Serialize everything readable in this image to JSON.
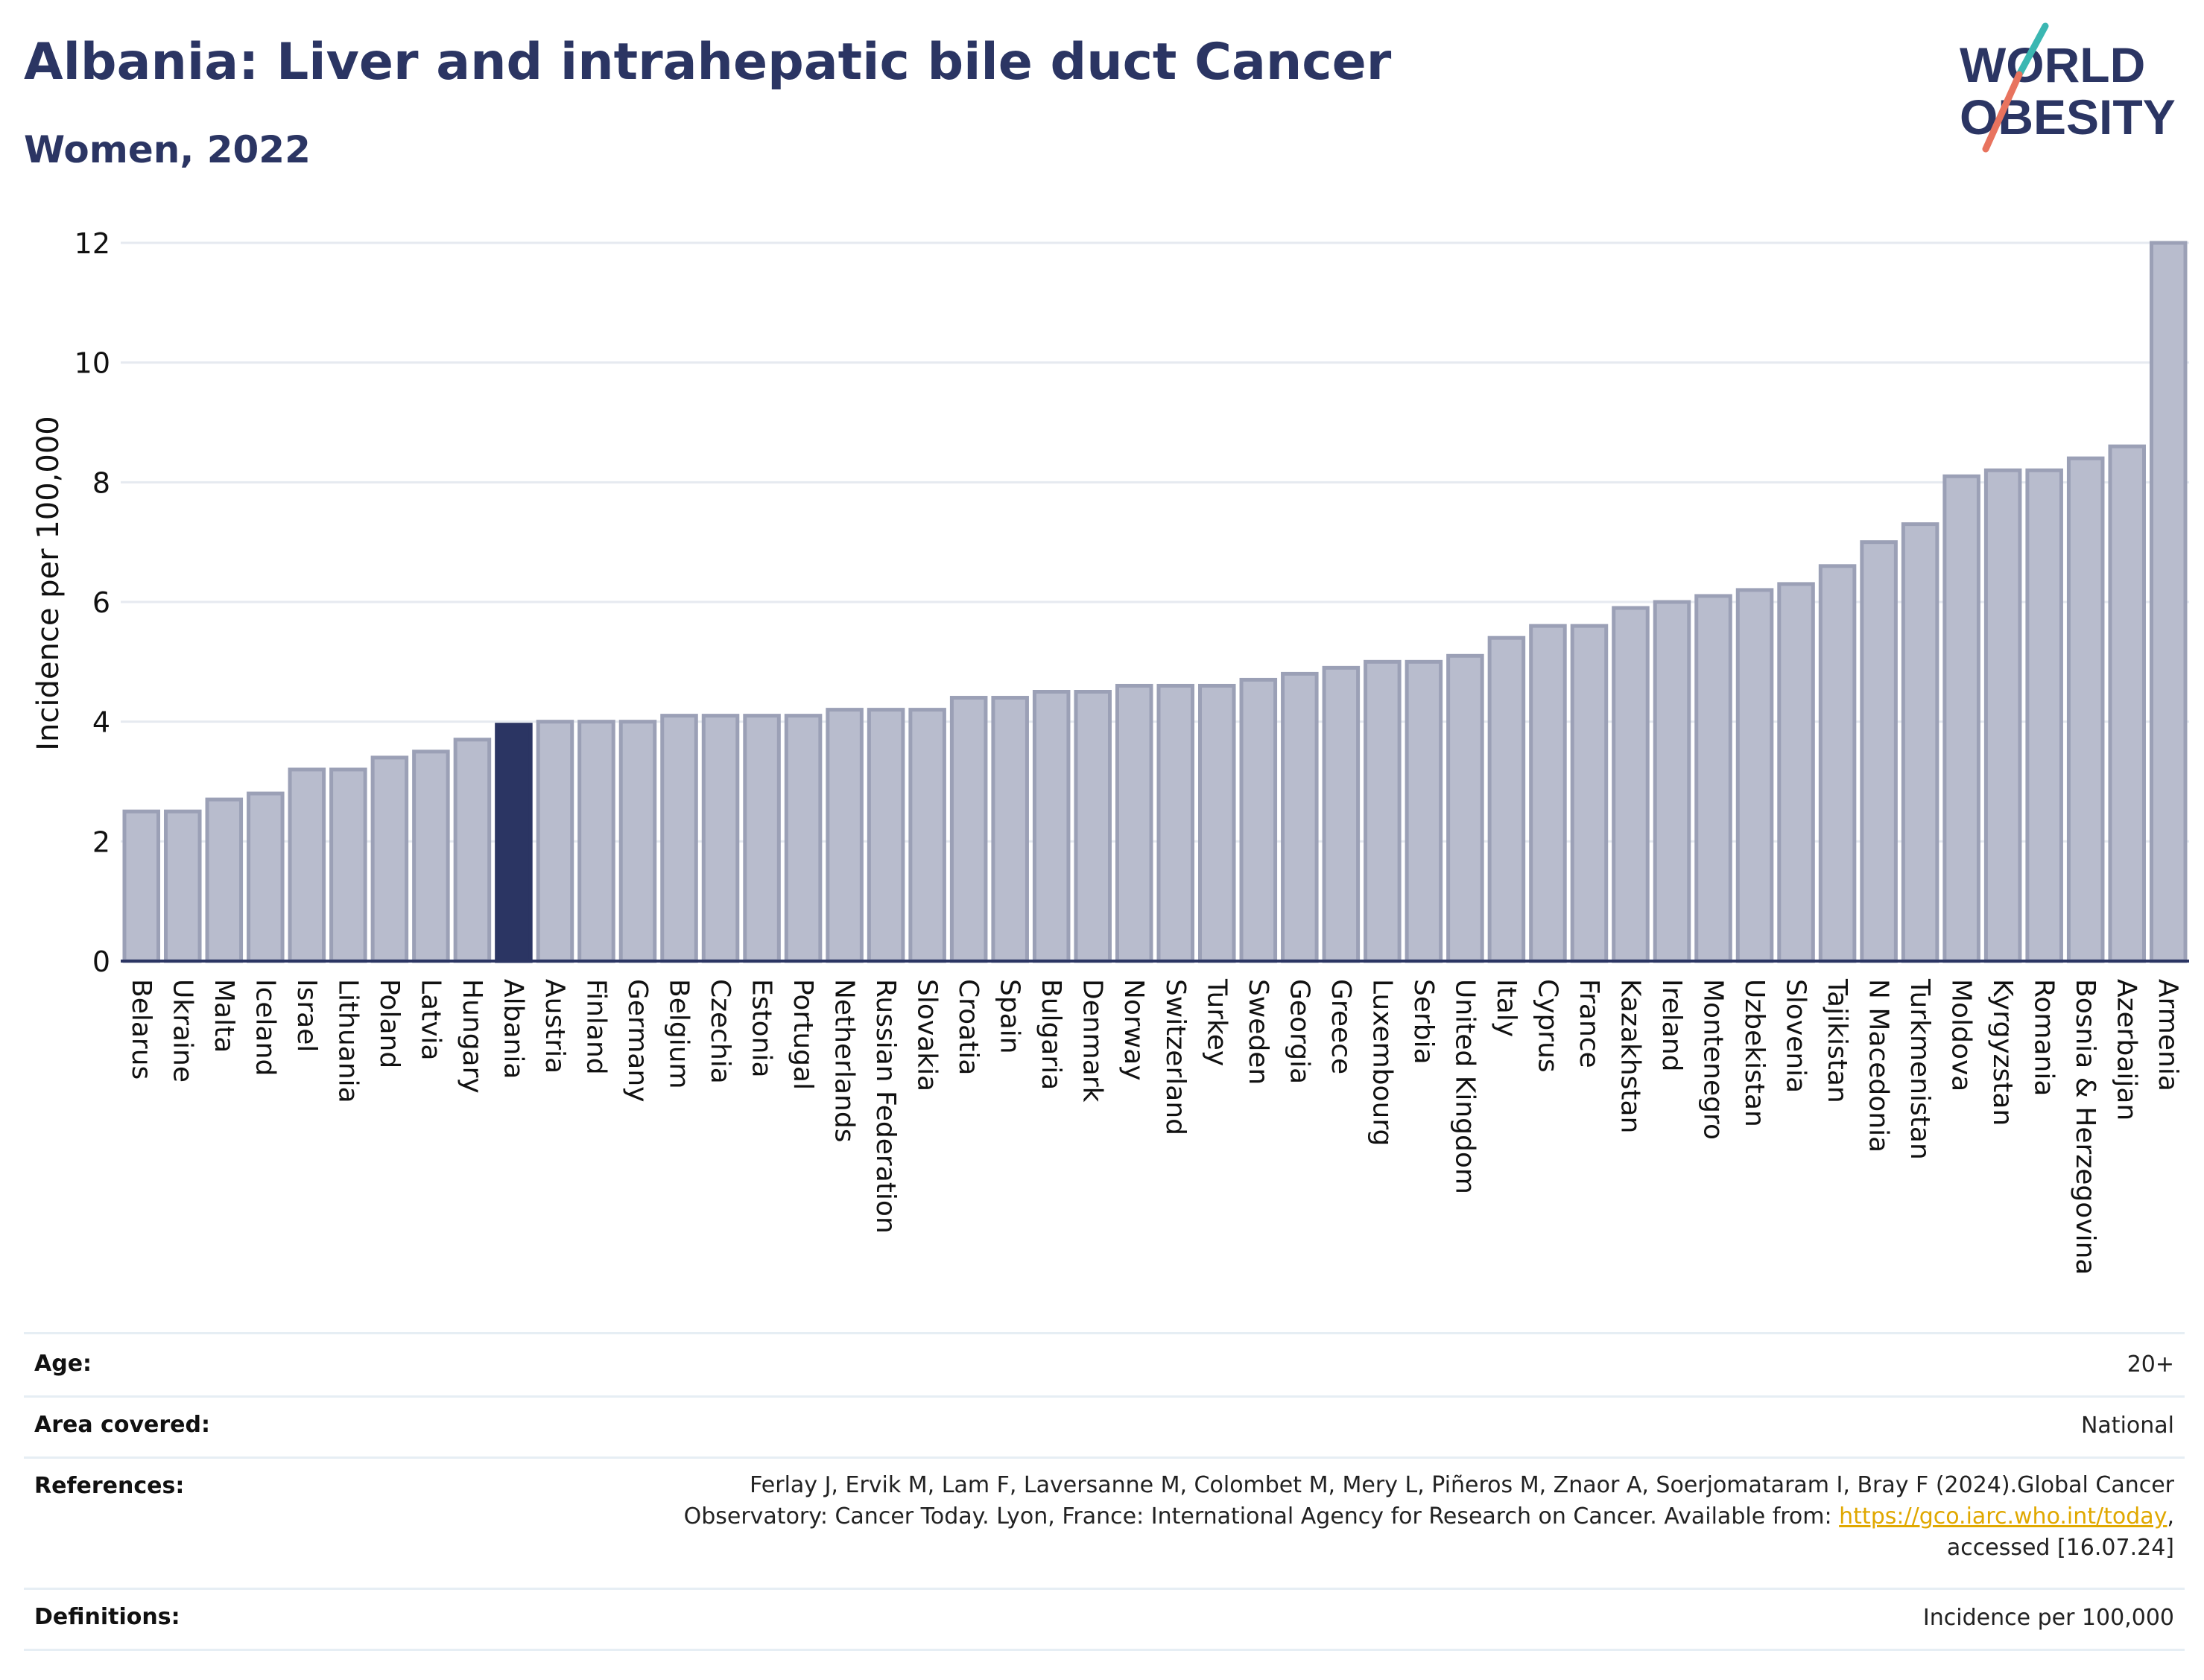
{
  "header": {
    "title": "Albania: Liver and intrahepatic bile duct Cancer",
    "subtitle": "Women, 2022"
  },
  "logo": {
    "line1": "WORLD",
    "line2": "OBESITY",
    "colors": {
      "text": "#2b3563",
      "slash_teal": "#3bb7b2",
      "slash_coral": "#e8735e"
    }
  },
  "chart_data": {
    "type": "bar",
    "ylabel": "Incidence per 100,000",
    "ylim": [
      0,
      12
    ],
    "yticks": [
      0,
      2,
      4,
      6,
      8,
      10,
      12
    ],
    "grid": true,
    "highlight": "Albania",
    "colors": {
      "bar": "#b8bccd",
      "bar_edge": "#9ba0b6",
      "highlight": "#2b3563",
      "grid": "#e6eaf0",
      "axis": "#2b3563"
    },
    "categories": [
      "Belarus",
      "Ukraine",
      "Malta",
      "Iceland",
      "Israel",
      "Lithuania",
      "Poland",
      "Latvia",
      "Hungary",
      "Albania",
      "Austria",
      "Finland",
      "Germany",
      "Belgium",
      "Czechia",
      "Estonia",
      "Portugal",
      "Netherlands",
      "Russian Federation",
      "Slovakia",
      "Croatia",
      "Spain",
      "Bulgaria",
      "Denmark",
      "Norway",
      "Switzerland",
      "Turkey",
      "Sweden",
      "Georgia",
      "Greece",
      "Luxembourg",
      "Serbia",
      "United Kingdom",
      "Italy",
      "Cyprus",
      "France",
      "Kazakhstan",
      "Ireland",
      "Montenegro",
      "Uzbekistan",
      "Slovenia",
      "Tajikistan",
      "N Macedonia",
      "Turkmenistan",
      "Moldova",
      "Kyrgyzstan",
      "Romania",
      "Bosnia & Herzegovina",
      "Azerbaijan",
      "Armenia"
    ],
    "values": [
      2.5,
      2.5,
      2.7,
      2.8,
      3.2,
      3.2,
      3.4,
      3.5,
      3.7,
      3.95,
      4.0,
      4.0,
      4.0,
      4.1,
      4.1,
      4.1,
      4.1,
      4.2,
      4.2,
      4.2,
      4.4,
      4.4,
      4.5,
      4.5,
      4.6,
      4.6,
      4.6,
      4.7,
      4.8,
      4.9,
      5.0,
      5.0,
      5.1,
      5.4,
      5.6,
      5.6,
      5.9,
      6.0,
      6.1,
      6.2,
      6.3,
      6.6,
      7.0,
      7.3,
      8.1,
      8.2,
      8.2,
      8.4,
      8.6,
      12.0
    ]
  },
  "details": {
    "age": {
      "label": "Age:",
      "value": "20+"
    },
    "area": {
      "label": "Area covered:",
      "value": "National"
    },
    "references": {
      "label": "References:",
      "line1": "Ferlay J, Ervik M, Lam F, Laversanne M, Colombet M, Mery L, Piñeros M, Znaor A, Soerjomataram I, Bray F (2024).Global Cancer",
      "line2_prefix": "Observatory: Cancer Today. Lyon, France: International Agency for Research on Cancer. Available from: ",
      "link": "https://gco.iarc.who.int/today",
      "line2_suffix": ",",
      "line3": "accessed [16.07.24]"
    },
    "definitions": {
      "label": "Definitions:",
      "value": "Incidence per 100,000"
    }
  }
}
